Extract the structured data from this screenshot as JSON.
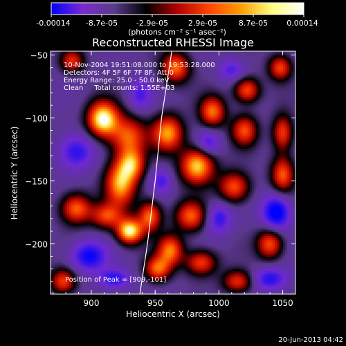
{
  "chart_data": {
    "type": "heatmap",
    "title": "Reconstructed RHESSI Image",
    "xlabel": "Heliocentric X (arcsec)",
    "ylabel": "Heliocentric Y (arcsec)",
    "xlim": [
      868,
      1060
    ],
    "ylim": [
      -240,
      -47
    ],
    "x_ticks": [
      900,
      950,
      1000,
      1050
    ],
    "y_ticks": [
      -50,
      -100,
      -150,
      -200
    ],
    "grid": false,
    "colorbar": {
      "location": "top",
      "range": [
        -0.00014,
        0.00014
      ],
      "unit_label": "(photons cm⁻² s⁻¹ asec⁻²)",
      "tick_labels": [
        "-0.00014",
        "-8.7e-05",
        "-2.9e-05",
        "2.9e-05",
        "8.7e-05",
        "0.00014"
      ],
      "colors": [
        "#0000ff",
        "#7a2bd0",
        "#5a3b8a",
        "#000000",
        "#b40000",
        "#ff4400",
        "#ff9a00",
        "#ffff80",
        "#ffffff"
      ]
    },
    "info_lines": [
      "10-Nov-2004 19:51:08.000 to 19:53:28.000",
      "Detectors: 4F 5F 6F 7F 8F, Att 0",
      "Energy Range: 25.0 - 50.0 keV",
      "Clean     Total counts: 1.55E+03"
    ],
    "peak_label": "Position of Peak = [909,-101]",
    "limb_curve": [
      [
        963,
        -47
      ],
      [
        955,
        -100
      ],
      [
        950,
        -150
      ],
      [
        944,
        -200
      ],
      [
        938,
        -240
      ]
    ],
    "blobs": [
      {
        "x": 909,
        "y": -101,
        "v": 1.0,
        "rx": 12,
        "ry": 14
      },
      {
        "x": 929,
        "y": -115,
        "v": 0.55,
        "rx": 14,
        "ry": 16
      },
      {
        "x": 923,
        "y": -152,
        "v": 0.75,
        "rx": 12,
        "ry": 18
      },
      {
        "x": 932,
        "y": -137,
        "v": 0.5,
        "rx": 10,
        "ry": 12
      },
      {
        "x": 966,
        "y": -60,
        "v": 0.6,
        "rx": 11,
        "ry": 12
      },
      {
        "x": 960,
        "y": -112,
        "v": 0.7,
        "rx": 12,
        "ry": 14
      },
      {
        "x": 983,
        "y": -138,
        "v": 0.85,
        "rx": 13,
        "ry": 14
      },
      {
        "x": 995,
        "y": -95,
        "v": 0.6,
        "rx": 10,
        "ry": 12
      },
      {
        "x": 1022,
        "y": -78,
        "v": 0.55,
        "rx": 10,
        "ry": 10
      },
      {
        "x": 1020,
        "y": -110,
        "v": 0.5,
        "rx": 10,
        "ry": 12
      },
      {
        "x": 1048,
        "y": -60,
        "v": 0.5,
        "rx": 9,
        "ry": 10
      },
      {
        "x": 1050,
        "y": -112,
        "v": 0.5,
        "rx": 8,
        "ry": 14
      },
      {
        "x": 1012,
        "y": -155,
        "v": 0.55,
        "rx": 12,
        "ry": 12
      },
      {
        "x": 1050,
        "y": -145,
        "v": 0.55,
        "rx": 9,
        "ry": 14
      },
      {
        "x": 888,
        "y": -172,
        "v": 0.6,
        "rx": 12,
        "ry": 12
      },
      {
        "x": 912,
        "y": -178,
        "v": 0.45,
        "rx": 12,
        "ry": 10
      },
      {
        "x": 930,
        "y": -190,
        "v": 0.95,
        "rx": 10,
        "ry": 10
      },
      {
        "x": 946,
        "y": -178,
        "v": 0.6,
        "rx": 9,
        "ry": 12
      },
      {
        "x": 978,
        "y": -178,
        "v": 0.55,
        "rx": 12,
        "ry": 12
      },
      {
        "x": 962,
        "y": -205,
        "v": 0.6,
        "rx": 10,
        "ry": 12
      },
      {
        "x": 952,
        "y": -220,
        "v": 0.55,
        "rx": 10,
        "ry": 10
      },
      {
        "x": 986,
        "y": -215,
        "v": 0.5,
        "rx": 12,
        "ry": 10
      },
      {
        "x": 1040,
        "y": -200,
        "v": 0.55,
        "rx": 10,
        "ry": 12
      },
      {
        "x": 1015,
        "y": -230,
        "v": 0.45,
        "rx": 12,
        "ry": 9
      },
      {
        "x": 878,
        "y": -230,
        "v": 0.5,
        "rx": 10,
        "ry": 10
      },
      {
        "x": 885,
        "y": -55,
        "v": 0.4,
        "rx": 9,
        "ry": 9
      },
      {
        "x": 888,
        "y": -127,
        "v": -0.5,
        "rx": 14,
        "ry": 14
      },
      {
        "x": 898,
        "y": -210,
        "v": -0.6,
        "rx": 14,
        "ry": 12
      },
      {
        "x": 918,
        "y": -228,
        "v": -0.5,
        "rx": 12,
        "ry": 8
      },
      {
        "x": 1045,
        "y": -175,
        "v": -0.75,
        "rx": 11,
        "ry": 14
      },
      {
        "x": 1000,
        "y": -180,
        "v": -0.45,
        "rx": 10,
        "ry": 12
      },
      {
        "x": 1040,
        "y": -228,
        "v": -0.5,
        "rx": 14,
        "ry": 9
      },
      {
        "x": 992,
        "y": -120,
        "v": -0.4,
        "rx": 9,
        "ry": 10
      },
      {
        "x": 938,
        "y": -82,
        "v": -0.35,
        "rx": 9,
        "ry": 12
      },
      {
        "x": 1010,
        "y": -62,
        "v": -0.35,
        "rx": 10,
        "ry": 9
      },
      {
        "x": 955,
        "y": -150,
        "v": -0.35,
        "rx": 8,
        "ry": 10
      }
    ]
  },
  "footer": {
    "date": "20-Jun-2013 04:42"
  }
}
